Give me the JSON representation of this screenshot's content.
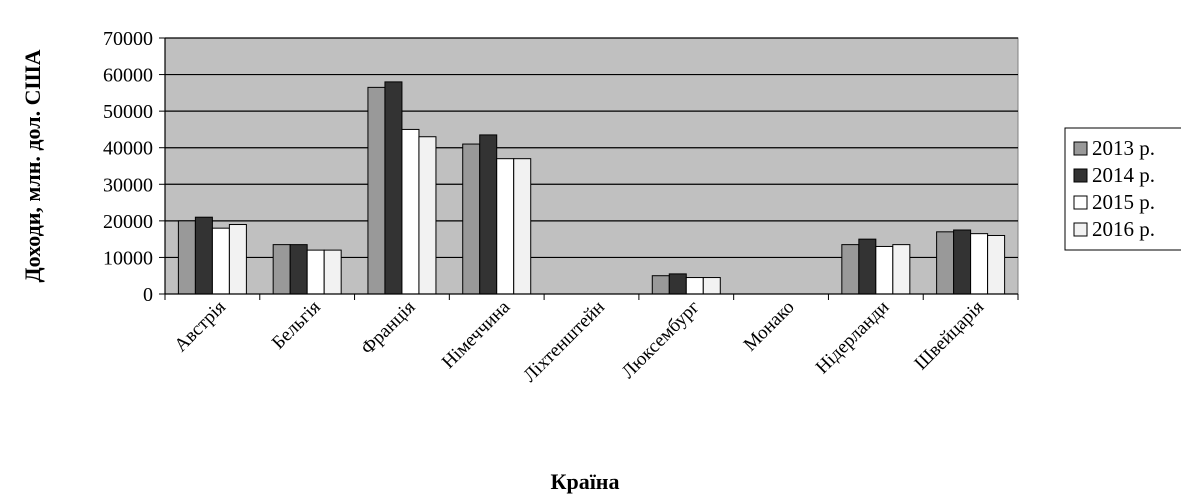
{
  "chart_data": {
    "type": "bar",
    "title": "",
    "xlabel": "Країна",
    "ylabel": "Доходи, млн. дол. США",
    "ylim": [
      0,
      70000
    ],
    "yticks": [
      "0",
      "10000",
      "20000",
      "30000",
      "40000",
      "50000",
      "60000",
      "70000"
    ],
    "grid": true,
    "legend_position": "right",
    "categories": [
      "Австрія",
      "Бельгія",
      "Франція",
      "Німеччина",
      "Ліхтенштейн",
      "Люксембург",
      "Монако",
      "Нідерланди",
      "Швейцарія"
    ],
    "series": [
      {
        "name": "2013 р.",
        "color": "#999999",
        "values": [
          20000,
          13500,
          56500,
          41000,
          0,
          5000,
          0,
          13500,
          17000
        ]
      },
      {
        "name": "2014 р.",
        "color": "#333333",
        "values": [
          21000,
          13500,
          58000,
          43500,
          0,
          5500,
          0,
          15000,
          17500
        ]
      },
      {
        "name": "2015 р.",
        "color": "#ffffff",
        "values": [
          18000,
          12000,
          45000,
          37000,
          0,
          4500,
          0,
          13000,
          16500
        ]
      },
      {
        "name": "2016 р.",
        "color": "#f2f2f2",
        "values": [
          19000,
          12000,
          43000,
          37000,
          0,
          4500,
          0,
          13500,
          16000
        ]
      }
    ],
    "plot_background": "#c0c0c0"
  }
}
